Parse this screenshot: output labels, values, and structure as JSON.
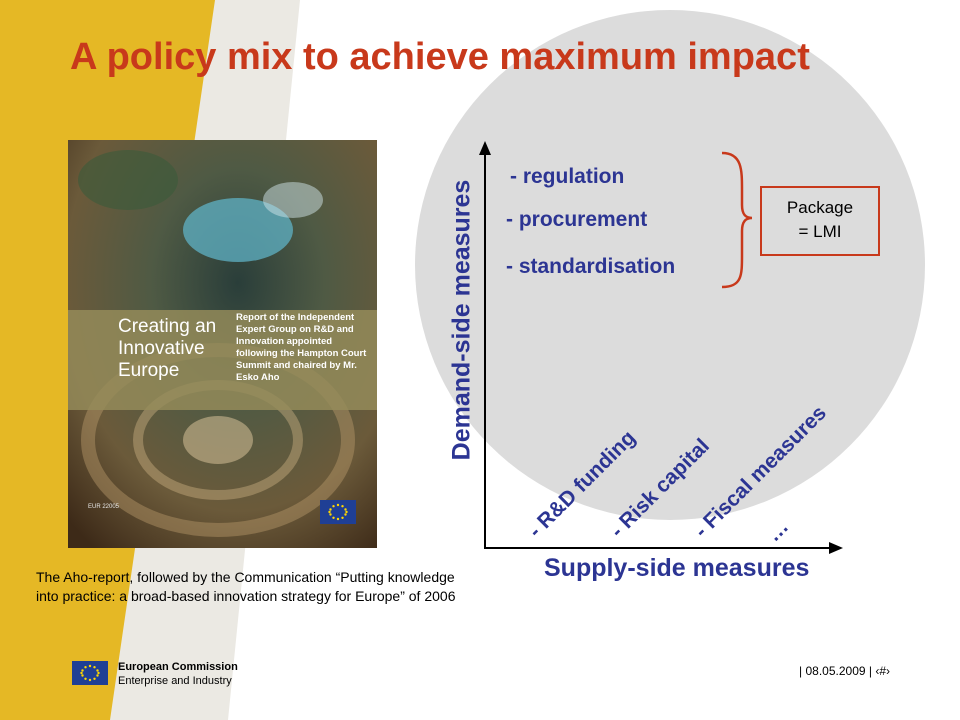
{
  "title": "A policy mix to achieve maximum impact",
  "cover": {
    "title": "Creating an Innovative Europe",
    "description": "Report of the Independent Expert Group on R&D and Innovation appointed following the Hampton Court Summit and chaired by Mr. Esko Aho",
    "code": "EUR 22005"
  },
  "caption": "The Aho-report, followed by the Communication “Putting knowledge into practice: a broad-based innovation strategy for Europe” of 2006",
  "diagram": {
    "y_axis_label": "Demand-side measures",
    "x_axis_label": "Supply-side measures",
    "demand_items": [
      "- regulation",
      "- procurement",
      "- standardisation"
    ],
    "package_label": "Package\n= LMI",
    "supply_items": [
      "- R&D funding",
      "- Risk capital",
      "- Fiscal measures",
      "…"
    ]
  },
  "footer": {
    "organization": "European Commission",
    "department": "Enterprise and Industry",
    "date_page": "| 08.05.2009 | ‹#›"
  },
  "colors": {
    "title": "#c8391b",
    "diagram_text": "#2c3593",
    "yellow_band": "#e5b825",
    "grey_circle": "#dcdcdc",
    "bracket": "#c8391b",
    "eu_flag": "#1f3f95"
  }
}
